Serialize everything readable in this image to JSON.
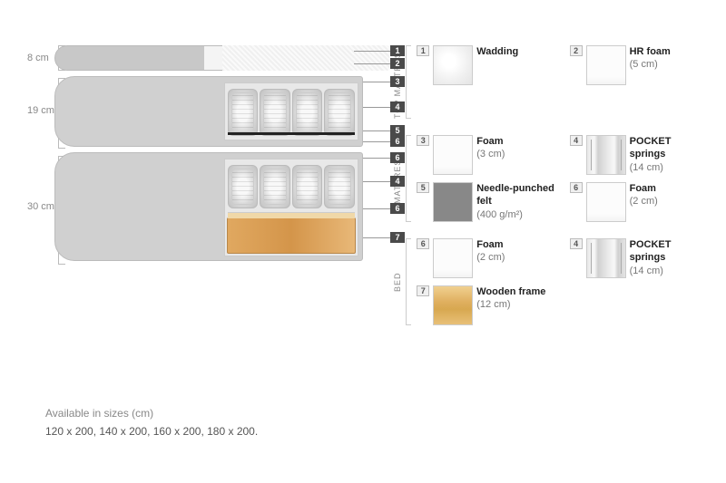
{
  "sections": {
    "top_mattress": {
      "label": "TOP MATTRESS",
      "height_cm": "8 cm"
    },
    "mattress": {
      "label": "MATTRESS",
      "height_cm": "19 cm"
    },
    "bed": {
      "label": "BED",
      "height_cm": "30 cm"
    }
  },
  "callouts": {
    "top_mattress": [
      "1",
      "2"
    ],
    "mattress": [
      "3",
      "4",
      "5",
      "6"
    ],
    "bed": [
      "6",
      "4",
      "6",
      "7"
    ]
  },
  "legend": {
    "top_mattress": [
      {
        "num": "1",
        "swatch": "wadding",
        "title": "Wadding",
        "sub": ""
      },
      {
        "num": "2",
        "swatch": "foam",
        "title": "HR foam",
        "sub": "(5 cm)"
      }
    ],
    "mattress": [
      {
        "num": "3",
        "swatch": "foam",
        "title": "Foam",
        "sub": "(3 cm)"
      },
      {
        "num": "4",
        "swatch": "springs",
        "title": "POCKET springs",
        "sub": "(14 cm)"
      },
      {
        "num": "5",
        "swatch": "felt",
        "title": "Needle-punched felt",
        "sub": "(400 g/m²)"
      },
      {
        "num": "6",
        "swatch": "foam",
        "title": "Foam",
        "sub": "(2 cm)"
      }
    ],
    "bed": [
      {
        "num": "6",
        "swatch": "foam",
        "title": "Foam",
        "sub": "(2 cm)"
      },
      {
        "num": "4",
        "swatch": "springs",
        "title": "POCKET springs",
        "sub": "(14 cm)"
      },
      {
        "num": "7",
        "swatch": "wood",
        "title": "Wooden frame",
        "sub": "(12 cm)"
      }
    ]
  },
  "footer": {
    "label": "Available in sizes (cm)",
    "sizes": "120 x 200, 140 x 200, 160 x 200, 180 x 200."
  },
  "colors": {
    "grey": "#d0d0d0",
    "marker_bg": "#4a4a4a",
    "wood": "#e0a860",
    "text_muted": "#888888"
  }
}
